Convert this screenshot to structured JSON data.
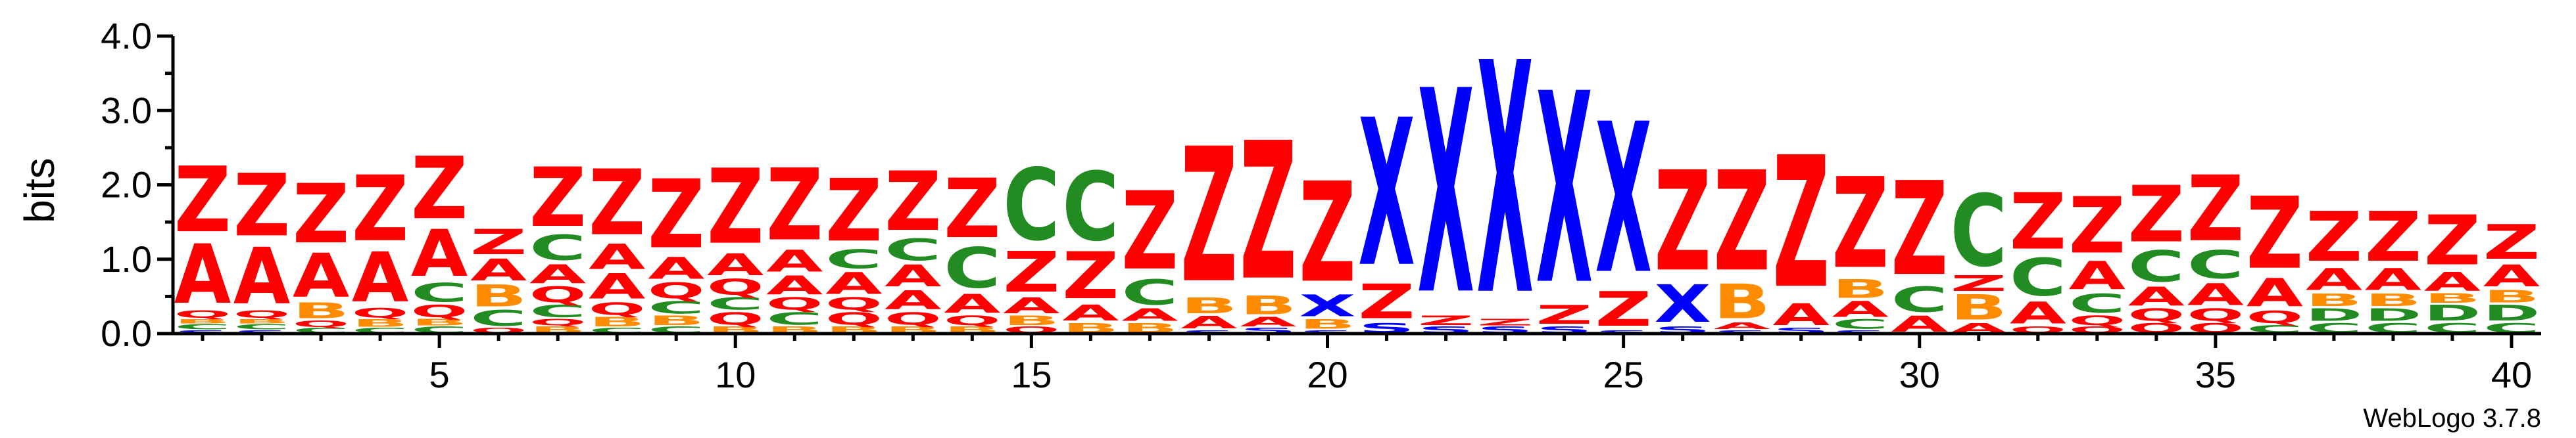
{
  "chart_data": {
    "type": "sequence-logo",
    "ylabel": "bits",
    "ylim": [
      0,
      4.0
    ],
    "yticks": [
      0.0,
      1.0,
      2.0,
      3.0,
      4.0
    ],
    "ytick_labels": [
      "0.0",
      "1.0",
      "2.0",
      "3.0",
      "4.0"
    ],
    "xlim": [
      0.5,
      40.5
    ],
    "xticks": [
      5,
      10,
      15,
      20,
      25,
      30,
      35,
      40
    ],
    "xtick_labels": [
      "5",
      "10",
      "15",
      "20",
      "25",
      "30",
      "35",
      "40"
    ],
    "credit": "WebLogo 3.7.8",
    "colors": {
      "Z": "#ff0000",
      "A": "#ff0000",
      "X": "#0000ff",
      "S": "#0000ff",
      "C": "#228b22",
      "D": "#228b22",
      "B": "#ff8c00",
      "Q": "#ff0000",
      "R": "#ff0000"
    },
    "positions": [
      {
        "pos": 1,
        "stack": [
          [
            "S",
            0.05
          ],
          [
            "C",
            0.08
          ],
          [
            "B",
            0.07
          ],
          [
            "Q",
            0.12
          ],
          [
            "A",
            0.95
          ],
          [
            "Z",
            1.05
          ]
        ]
      },
      {
        "pos": 2,
        "stack": [
          [
            "S",
            0.05
          ],
          [
            "C",
            0.08
          ],
          [
            "B",
            0.07
          ],
          [
            "Q",
            0.12
          ],
          [
            "A",
            0.9
          ],
          [
            "Z",
            1.0
          ]
        ]
      },
      {
        "pos": 3,
        "stack": [
          [
            "C",
            0.08
          ],
          [
            "Q",
            0.1
          ],
          [
            "B",
            0.25
          ],
          [
            "A",
            0.7
          ],
          [
            "Z",
            0.95
          ]
        ]
      },
      {
        "pos": 4,
        "stack": [
          [
            "C",
            0.08
          ],
          [
            "B",
            0.12
          ],
          [
            "Q",
            0.15
          ],
          [
            "A",
            0.8
          ],
          [
            "Z",
            1.05
          ]
        ]
      },
      {
        "pos": 5,
        "stack": [
          [
            "C",
            0.1
          ],
          [
            "B",
            0.1
          ],
          [
            "Q",
            0.2
          ],
          [
            "C",
            0.3
          ],
          [
            "A",
            0.75
          ],
          [
            "Z",
            1.0
          ]
        ]
      },
      {
        "pos": 6,
        "stack": [
          [
            "Q",
            0.08
          ],
          [
            "C",
            0.25
          ],
          [
            "B",
            0.35
          ],
          [
            "A",
            0.35
          ],
          [
            "Z",
            0.4
          ]
        ]
      },
      {
        "pos": 7,
        "stack": [
          [
            "B",
            0.1
          ],
          [
            "Q",
            0.1
          ],
          [
            "C",
            0.2
          ],
          [
            "Q",
            0.25
          ],
          [
            "A",
            0.3
          ],
          [
            "C",
            0.4
          ],
          [
            "Z",
            0.95
          ]
        ]
      },
      {
        "pos": 8,
        "stack": [
          [
            "C",
            0.08
          ],
          [
            "B",
            0.15
          ],
          [
            "Q",
            0.2
          ],
          [
            "A",
            0.4
          ],
          [
            "A",
            0.4
          ],
          [
            "Z",
            1.05
          ]
        ]
      },
      {
        "pos": 9,
        "stack": [
          [
            "C",
            0.1
          ],
          [
            "B",
            0.15
          ],
          [
            "C",
            0.2
          ],
          [
            "Q",
            0.25
          ],
          [
            "A",
            0.35
          ],
          [
            "Z",
            1.1
          ]
        ]
      },
      {
        "pos": 10,
        "stack": [
          [
            "B",
            0.1
          ],
          [
            "Q",
            0.2
          ],
          [
            "C",
            0.2
          ],
          [
            "Q",
            0.25
          ],
          [
            "A",
            0.35
          ],
          [
            "Z",
            1.2
          ]
        ]
      },
      {
        "pos": 11,
        "stack": [
          [
            "B",
            0.1
          ],
          [
            "C",
            0.2
          ],
          [
            "Q",
            0.2
          ],
          [
            "A",
            0.3
          ],
          [
            "A",
            0.35
          ],
          [
            "Z",
            1.15
          ]
        ]
      },
      {
        "pos": 12,
        "stack": [
          [
            "B",
            0.1
          ],
          [
            "Q",
            0.2
          ],
          [
            "Q",
            0.2
          ],
          [
            "A",
            0.35
          ],
          [
            "C",
            0.3
          ],
          [
            "Z",
            1.0
          ]
        ]
      },
      {
        "pos": 13,
        "stack": [
          [
            "B",
            0.1
          ],
          [
            "Q",
            0.2
          ],
          [
            "A",
            0.3
          ],
          [
            "A",
            0.35
          ],
          [
            "C",
            0.35
          ],
          [
            "Z",
            0.95
          ]
        ]
      },
      {
        "pos": 14,
        "stack": [
          [
            "B",
            0.1
          ],
          [
            "Q",
            0.15
          ],
          [
            "A",
            0.3
          ],
          [
            "C",
            0.65
          ],
          [
            "Z",
            0.95
          ]
        ]
      },
      {
        "pos": 15,
        "stack": [
          [
            "Q",
            0.1
          ],
          [
            "B",
            0.15
          ],
          [
            "A",
            0.25
          ],
          [
            "Z",
            0.65
          ],
          [
            "C",
            1.15
          ]
        ]
      },
      {
        "pos": 16,
        "stack": [
          [
            "B",
            0.15
          ],
          [
            "A",
            0.25
          ],
          [
            "Z",
            0.75
          ],
          [
            "C",
            1.1
          ]
        ]
      },
      {
        "pos": 17,
        "stack": [
          [
            "B",
            0.15
          ],
          [
            "A",
            0.2
          ],
          [
            "C",
            0.4
          ],
          [
            "Z",
            1.25
          ]
        ]
      },
      {
        "pos": 18,
        "stack": [
          [
            "S",
            0.05
          ],
          [
            "A",
            0.2
          ],
          [
            "B",
            0.25
          ],
          [
            "Z",
            2.15
          ]
        ]
      },
      {
        "pos": 19,
        "stack": [
          [
            "S",
            0.08
          ],
          [
            "A",
            0.15
          ],
          [
            "B",
            0.3
          ],
          [
            "Z",
            2.2
          ]
        ]
      },
      {
        "pos": 20,
        "stack": [
          [
            "S",
            0.05
          ],
          [
            "B",
            0.15
          ],
          [
            "X",
            0.35
          ],
          [
            "Z",
            1.6
          ]
        ]
      },
      {
        "pos": 21,
        "stack": [
          [
            "S",
            0.15
          ],
          [
            "Z",
            0.55
          ],
          [
            "X",
            2.35
          ]
        ]
      },
      {
        "pos": 22,
        "stack": [
          [
            "S",
            0.1
          ],
          [
            "Z",
            0.15
          ],
          [
            "X",
            3.25
          ]
        ]
      },
      {
        "pos": 23,
        "stack": [
          [
            "S",
            0.1
          ],
          [
            "Z",
            0.1
          ],
          [
            "X",
            3.7
          ]
        ]
      },
      {
        "pos": 24,
        "stack": [
          [
            "S",
            0.1
          ],
          [
            "Z",
            0.3
          ],
          [
            "X",
            3.05
          ]
        ]
      },
      {
        "pos": 25,
        "stack": [
          [
            "S",
            0.05
          ],
          [
            "Z",
            0.55
          ],
          [
            "X",
            2.4
          ]
        ]
      },
      {
        "pos": 26,
        "stack": [
          [
            "S",
            0.1
          ],
          [
            "X",
            0.6
          ],
          [
            "Z",
            1.6
          ]
        ]
      },
      {
        "pos": 27,
        "stack": [
          [
            "S",
            0.05
          ],
          [
            "A",
            0.1
          ],
          [
            "B",
            0.55
          ],
          [
            "Z",
            1.6
          ]
        ]
      },
      {
        "pos": 28,
        "stack": [
          [
            "S",
            0.08
          ],
          [
            "A",
            0.35
          ],
          [
            "Z",
            2.1
          ]
        ]
      },
      {
        "pos": 29,
        "stack": [
          [
            "S",
            0.05
          ],
          [
            "C",
            0.15
          ],
          [
            "A",
            0.25
          ],
          [
            "B",
            0.3
          ],
          [
            "Z",
            1.45
          ]
        ]
      },
      {
        "pos": 30,
        "stack": [
          [
            "A",
            0.25
          ],
          [
            "C",
            0.4
          ],
          [
            "Z",
            1.5
          ]
        ]
      },
      {
        "pos": 31,
        "stack": [
          [
            "A",
            0.15
          ],
          [
            "B",
            0.4
          ],
          [
            "Z",
            0.25
          ],
          [
            "C",
            1.15
          ]
        ]
      },
      {
        "pos": 32,
        "stack": [
          [
            "Q",
            0.1
          ],
          [
            "A",
            0.35
          ],
          [
            "C",
            0.6
          ],
          [
            "Z",
            0.9
          ]
        ]
      },
      {
        "pos": 33,
        "stack": [
          [
            "Q",
            0.1
          ],
          [
            "Q",
            0.15
          ],
          [
            "C",
            0.3
          ],
          [
            "A",
            0.45
          ],
          [
            "Z",
            0.9
          ]
        ]
      },
      {
        "pos": 34,
        "stack": [
          [
            "Q",
            0.15
          ],
          [
            "Q",
            0.2
          ],
          [
            "A",
            0.3
          ],
          [
            "C",
            0.5
          ],
          [
            "Z",
            0.9
          ]
        ]
      },
      {
        "pos": 35,
        "stack": [
          [
            "Q",
            0.15
          ],
          [
            "Q",
            0.2
          ],
          [
            "A",
            0.35
          ],
          [
            "C",
            0.45
          ],
          [
            "Z",
            1.05
          ]
        ]
      },
      {
        "pos": 36,
        "stack": [
          [
            "C",
            0.12
          ],
          [
            "Q",
            0.2
          ],
          [
            "A",
            0.45
          ],
          [
            "Z",
            1.15
          ]
        ]
      },
      {
        "pos": 37,
        "stack": [
          [
            "C",
            0.15
          ],
          [
            "D",
            0.2
          ],
          [
            "B",
            0.2
          ],
          [
            "A",
            0.35
          ],
          [
            "Z",
            0.8
          ]
        ]
      },
      {
        "pos": 38,
        "stack": [
          [
            "C",
            0.15
          ],
          [
            "D",
            0.2
          ],
          [
            "B",
            0.2
          ],
          [
            "A",
            0.35
          ],
          [
            "Z",
            0.8
          ]
        ]
      },
      {
        "pos": 39,
        "stack": [
          [
            "C",
            0.15
          ],
          [
            "D",
            0.25
          ],
          [
            "B",
            0.15
          ],
          [
            "A",
            0.3
          ],
          [
            "Z",
            0.8
          ]
        ]
      },
      {
        "pos": 40,
        "stack": [
          [
            "C",
            0.15
          ],
          [
            "D",
            0.25
          ],
          [
            "B",
            0.2
          ],
          [
            "A",
            0.35
          ],
          [
            "Z",
            0.55
          ]
        ]
      }
    ]
  }
}
